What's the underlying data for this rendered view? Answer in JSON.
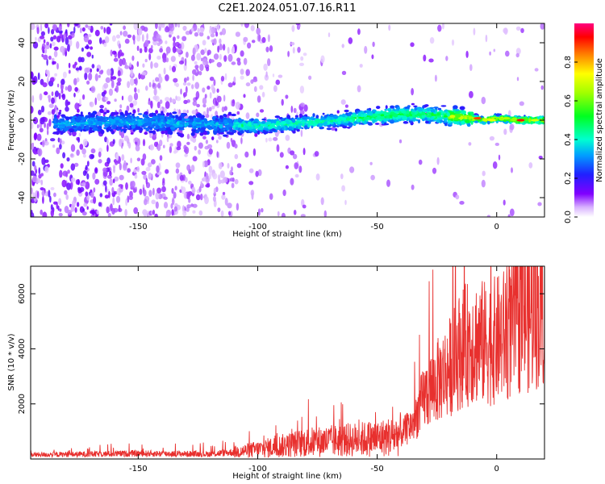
{
  "page": {
    "title": "C2E1.2024.051.07.16.R11"
  },
  "colors": {
    "snr_line": "#e8302e",
    "frame": "#000000",
    "background": "#ffffff"
  },
  "chart_data": [
    {
      "type": "heatmap",
      "xlabel": "Height of straight line (km)",
      "ylabel": "Frequency (Hz)",
      "xlim": [
        -195,
        20
      ],
      "ylim": [
        -50,
        50
      ],
      "xticks": [
        -150,
        -100,
        -50,
        0
      ],
      "yticks": [
        -40,
        -20,
        0,
        20,
        40
      ],
      "ridge": {
        "x": [
          -195,
          -150,
          -125,
          -100,
          -75,
          -50,
          -40,
          -30,
          -20,
          -10,
          -5,
          0,
          10,
          20
        ],
        "y": [
          -2,
          -1,
          -2,
          -3,
          -1,
          2,
          3,
          3,
          2,
          1,
          0,
          1,
          0,
          0
        ]
      },
      "colorbar": {
        "label": "Normalized spectral amplitude",
        "range": [
          0,
          1
        ],
        "ticks": [
          0.0,
          0.2,
          0.4,
          0.6,
          0.8
        ],
        "colormap": "rainbow"
      }
    },
    {
      "type": "line",
      "xlabel": "Height of straight line (km)",
      "ylabel": "SNR (10 * v/v)",
      "xlim": [
        -195,
        20
      ],
      "ylim": [
        0,
        7000
      ],
      "xticks": [
        -150,
        -100,
        -50,
        0
      ],
      "yticks": [
        2000,
        4000,
        6000
      ],
      "envelope": {
        "x": [
          -195,
          -150,
          -120,
          -110,
          -100,
          -80,
          -60,
          -50,
          -45,
          -40,
          -35,
          -30,
          -25,
          -20,
          -15,
          -10,
          -5,
          0,
          5,
          10,
          15,
          20
        ],
        "y": [
          150,
          200,
          180,
          250,
          350,
          600,
          700,
          750,
          800,
          900,
          1300,
          2300,
          2800,
          3300,
          4000,
          4300,
          4200,
          4300,
          4600,
          5200,
          5300,
          5600
        ]
      }
    }
  ]
}
